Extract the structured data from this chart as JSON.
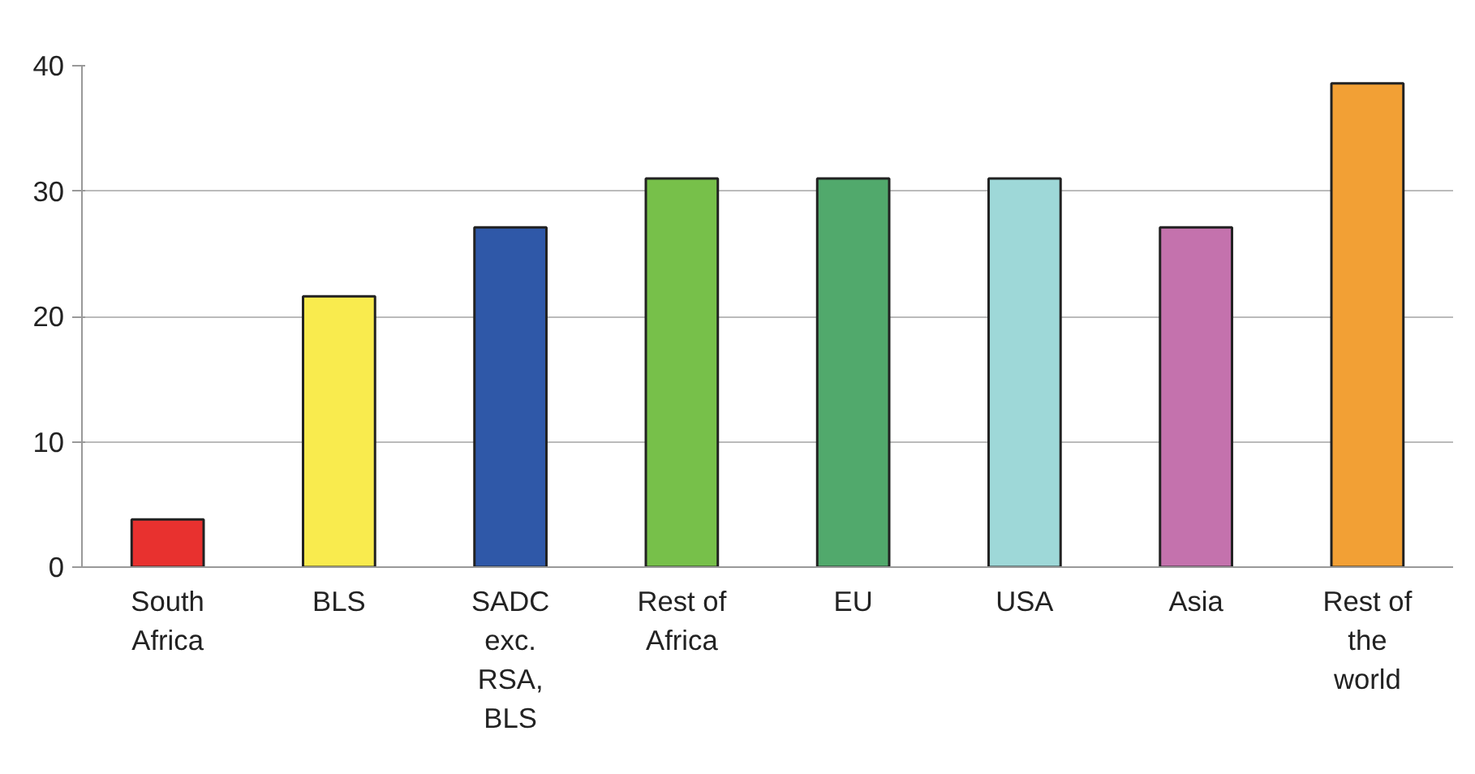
{
  "chart_data": {
    "type": "bar",
    "categories": [
      "South\nAfrica",
      "BLS",
      "SADC\nexc.\nRSA,\nBLS",
      "Rest of\nAfrica",
      "EU",
      "USA",
      "Asia",
      "Rest of\nthe\nworld"
    ],
    "values": [
      3.8,
      21.6,
      27.1,
      31,
      31,
      31,
      27.1,
      38.6
    ],
    "colors": [
      "#e8312f",
      "#f9eb4e",
      "#2f58a8",
      "#77c04a",
      "#51a96c",
      "#9ed8d8",
      "#c472ad",
      "#f2a035"
    ],
    "ylim": [
      0,
      40
    ],
    "yticks": [
      0,
      10,
      20,
      30,
      40
    ],
    "grid": "y"
  }
}
